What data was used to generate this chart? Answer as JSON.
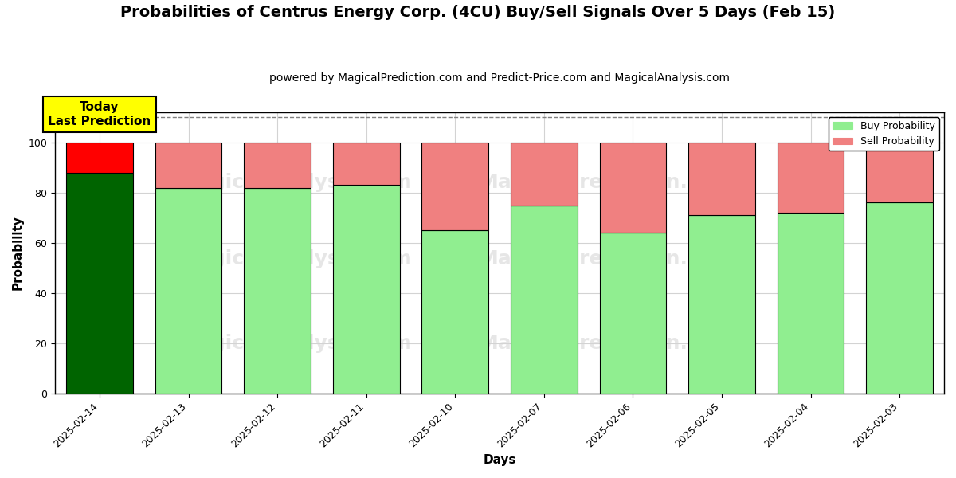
{
  "title": "Probabilities of Centrus Energy Corp. (4CU) Buy/Sell Signals Over 5 Days (Feb 15)",
  "subtitle": "powered by MagicalPrediction.com and Predict-Price.com and MagicalAnalysis.com",
  "xlabel": "Days",
  "ylabel": "Probability",
  "dates": [
    "2025-02-14",
    "2025-02-13",
    "2025-02-12",
    "2025-02-11",
    "2025-02-10",
    "2025-02-07",
    "2025-02-06",
    "2025-02-05",
    "2025-02-04",
    "2025-02-03"
  ],
  "buy_probs": [
    88,
    82,
    82,
    83,
    65,
    75,
    64,
    71,
    72,
    76
  ],
  "sell_probs": [
    12,
    18,
    18,
    17,
    35,
    25,
    36,
    29,
    28,
    24
  ],
  "today_buy_color": "#006400",
  "today_sell_color": "#FF0000",
  "buy_color": "#90EE90",
  "sell_color": "#F08080",
  "bar_edge_color": "#000000",
  "ylim": [
    0,
    112
  ],
  "yticks": [
    0,
    20,
    40,
    60,
    80,
    100
  ],
  "dashed_line_y": 110,
  "today_label": "Today\nLast Prediction",
  "today_label_bg": "#FFFF00",
  "watermark_texts": [
    "MagicalAnalysis.com",
    "MagicalPrediction.com"
  ],
  "legend_buy": "Buy Probability",
  "legend_sell": "Sell Probability",
  "title_fontsize": 14,
  "subtitle_fontsize": 10,
  "label_fontsize": 11,
  "tick_fontsize": 9,
  "bar_width": 0.75
}
